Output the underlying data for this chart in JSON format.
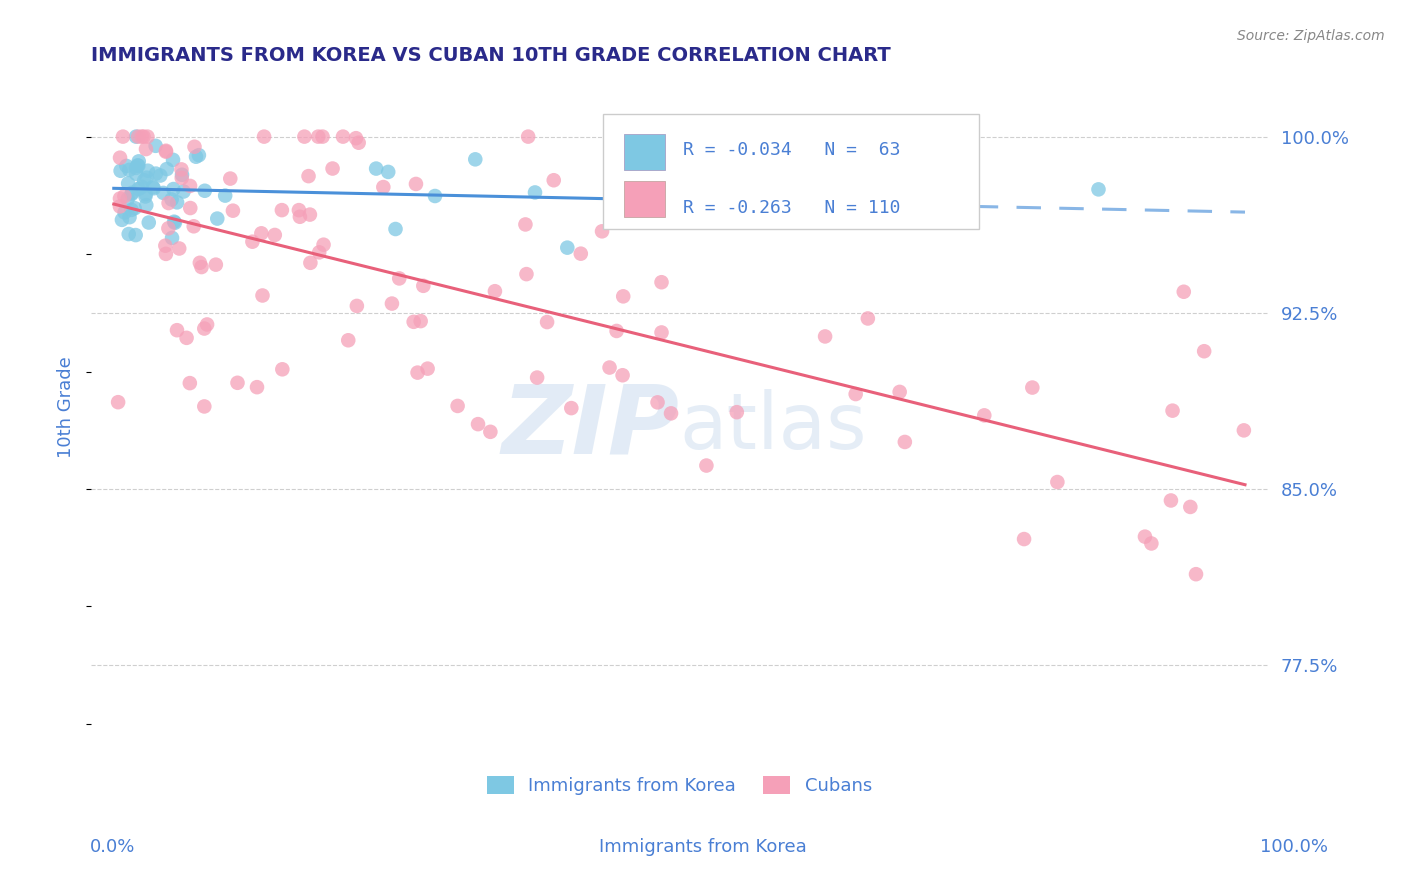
{
  "title": "IMMIGRANTS FROM KOREA VS CUBAN 10TH GRADE CORRELATION CHART",
  "source_text": "Source: ZipAtlas.com",
  "ylabel": "10th Grade",
  "legend_label1": "Immigrants from Korea",
  "legend_label2": "Cubans",
  "legend_R1": "R = -0.034",
  "legend_N1": "N =  63",
  "legend_R2": "R = -0.263",
  "legend_N2": "N = 110",
  "ytick_labels": [
    "77.5%",
    "85.0%",
    "92.5%",
    "100.0%"
  ],
  "ytick_values": [
    0.775,
    0.85,
    0.925,
    1.0
  ],
  "ymin": 0.745,
  "ymax": 1.025,
  "xmin": -0.02,
  "xmax": 1.02,
  "color_korea": "#7ec8e3",
  "color_cuba": "#f5a0b8",
  "line_color_korea": "#4a90d9",
  "line_color_cuba": "#e8607a",
  "grid_color": "#bbbbbb",
  "title_color": "#2a2a8a",
  "ytick_color": "#4a7fd4",
  "watermark_color": "#d0dff0"
}
